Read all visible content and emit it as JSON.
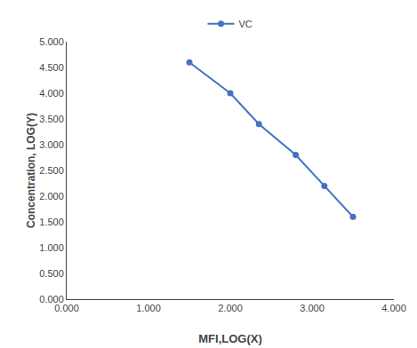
{
  "chart_data": {
    "type": "line",
    "x": [
      1.5,
      2.0,
      2.35,
      2.8,
      3.15,
      3.5
    ],
    "series": [
      {
        "name": "VC",
        "color": "#4472C4",
        "marker": "circle",
        "line_style": "solid",
        "values": [
          4.6,
          4.0,
          3.4,
          2.8,
          2.2,
          1.6
        ]
      }
    ],
    "xlabel": "MFI,LOG(X)",
    "ylabel": "Concentration, LOG(Y)",
    "xlim": [
      0.0,
      4.0
    ],
    "ylim": [
      0.0,
      5.0
    ],
    "xticks": [
      {
        "value": 0.0,
        "label": "0.000"
      },
      {
        "value": 1.0,
        "label": "1.000"
      },
      {
        "value": 2.0,
        "label": "2.000"
      },
      {
        "value": 3.0,
        "label": "3.000"
      },
      {
        "value": 4.0,
        "label": "4.000"
      }
    ],
    "yticks": [
      {
        "value": 0.0,
        "label": "0.000"
      },
      {
        "value": 0.5,
        "label": "0.500"
      },
      {
        "value": 1.0,
        "label": "1.000"
      },
      {
        "value": 1.5,
        "label": "1.500"
      },
      {
        "value": 2.0,
        "label": "2.000"
      },
      {
        "value": 2.5,
        "label": "2.500"
      },
      {
        "value": 3.0,
        "label": "3.000"
      },
      {
        "value": 3.5,
        "label": "3.500"
      },
      {
        "value": 4.0,
        "label": "4.000"
      },
      {
        "value": 4.5,
        "label": "4.500"
      },
      {
        "value": 5.0,
        "label": "5.000"
      }
    ],
    "grid": false,
    "legend": "top"
  }
}
